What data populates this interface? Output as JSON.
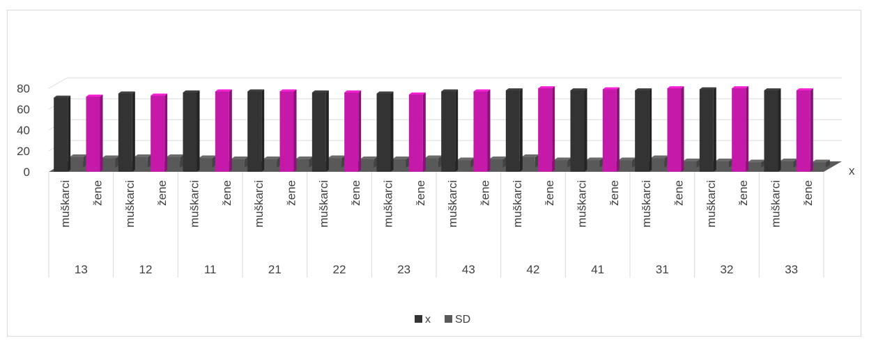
{
  "chart_data": {
    "type": "bar",
    "style": "3d-clustered-column",
    "title": "",
    "depth_axis_label": "x",
    "ylim": [
      0,
      80
    ],
    "yticks": [
      0,
      20,
      40,
      60,
      80
    ],
    "grid": true,
    "legend_position": "bottom",
    "groups": [
      {
        "label": "13",
        "subcategories": [
          "muškarci",
          "žene"
        ]
      },
      {
        "label": "12",
        "subcategories": [
          "muškarci",
          "žene"
        ]
      },
      {
        "label": "11",
        "subcategories": [
          "muškarci",
          "žene"
        ]
      },
      {
        "label": "21",
        "subcategories": [
          "muškarci",
          "žene"
        ]
      },
      {
        "label": "22",
        "subcategories": [
          "muškarci",
          "žene"
        ]
      },
      {
        "label": "23",
        "subcategories": [
          "muškarci",
          "žene"
        ]
      },
      {
        "label": "43",
        "subcategories": [
          "muškarci",
          "žene"
        ]
      },
      {
        "label": "42",
        "subcategories": [
          "muškarci",
          "žene"
        ]
      },
      {
        "label": "41",
        "subcategories": [
          "muškarci",
          "žene"
        ]
      },
      {
        "label": "31",
        "subcategories": [
          "muškarci",
          "žene"
        ]
      },
      {
        "label": "32",
        "subcategories": [
          "muškarci",
          "žene"
        ]
      },
      {
        "label": "33",
        "subcategories": [
          "muškarci",
          "žene"
        ]
      }
    ],
    "series": [
      {
        "name": "x",
        "values": [
          71,
          72,
          75,
          73,
          76,
          77,
          77,
          77,
          76,
          76,
          75,
          74,
          77,
          77,
          78,
          80,
          78,
          79,
          78,
          80,
          79,
          80,
          78,
          78
        ]
      },
      {
        "name": "SD",
        "values": [
          10,
          9,
          10,
          10,
          9,
          8,
          8,
          8,
          9,
          8,
          8,
          9,
          7,
          8,
          10,
          7,
          7,
          7,
          9,
          6,
          6,
          5,
          6,
          5
        ]
      }
    ],
    "colors": {
      "x_muskarci": "#333333",
      "x_zene": "#c51aa9",
      "sd": "#595959",
      "floor": "#5a5a5a",
      "grid": "#d9d9d9",
      "text": "#404040"
    }
  }
}
